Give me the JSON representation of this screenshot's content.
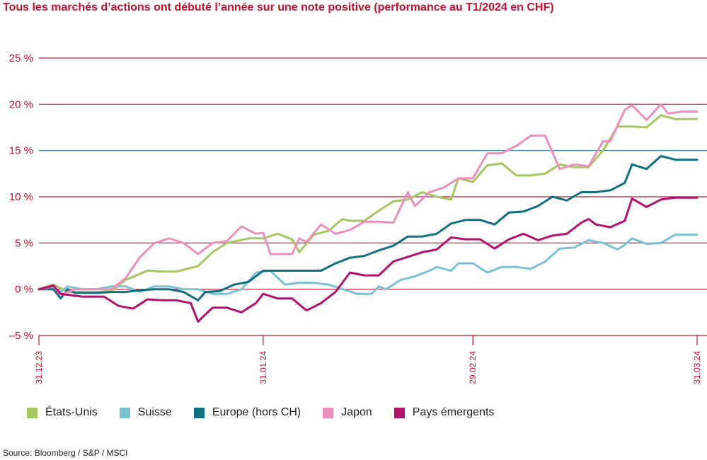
{
  "title": "Tous les marchés d’actions ont débuté l’année sur une note positive (performance au T1/2024 en CHF)",
  "source": "Source: Bloomberg / S&P / MSCI",
  "chart_data": {
    "type": "line",
    "title": "Tous les marchés d’actions ont débuté l’année sur une note positive (performance au T1/2024 en CHF)",
    "ylim": [
      -5,
      25
    ],
    "yticks": [
      -5,
      0,
      5,
      10,
      15,
      20,
      25
    ],
    "ytick_labels": [
      "–5 %",
      "0 %",
      "5 %",
      "10 %",
      "15 %",
      "20 %",
      "25 %"
    ],
    "highlight_gridline": 15,
    "xlim": [
      "2023-12-31",
      "2024-03-31"
    ],
    "xticks": [
      "2023-12-31",
      "2024-01-31",
      "2024-02-29",
      "2024-03-31"
    ],
    "xtick_labels": [
      "31.12.23",
      "31.01.24",
      "29.02.24",
      "31.03.24"
    ],
    "legend_position": "bottom",
    "series": [
      {
        "name": "États-Unis",
        "color": "#a5c761",
        "points": [
          [
            "2023-12-31",
            0
          ],
          [
            "2024-01-02",
            0.5
          ],
          [
            "2024-01-04",
            -0.3
          ],
          [
            "2024-01-08",
            -0.3
          ],
          [
            "2024-01-10",
            -0.2
          ],
          [
            "2024-01-12",
            1
          ],
          [
            "2024-01-15",
            2
          ],
          [
            "2024-01-17",
            1.9
          ],
          [
            "2024-01-19",
            1.9
          ],
          [
            "2024-01-22",
            2.5
          ],
          [
            "2024-01-24",
            4
          ],
          [
            "2024-01-26",
            5
          ],
          [
            "2024-01-29",
            5.5
          ],
          [
            "2024-01-31",
            5.5
          ],
          [
            "2024-02-02",
            6
          ],
          [
            "2024-02-04",
            5.4
          ],
          [
            "2024-02-05",
            4
          ],
          [
            "2024-02-07",
            5.9
          ],
          [
            "2024-02-09",
            6.3
          ],
          [
            "2024-02-11",
            7.6
          ],
          [
            "2024-02-12",
            7.4
          ],
          [
            "2024-02-14",
            7.4
          ],
          [
            "2024-02-16",
            8.5
          ],
          [
            "2024-02-18",
            9.5
          ],
          [
            "2024-02-20",
            9.7
          ],
          [
            "2024-02-22",
            10.5
          ],
          [
            "2024-02-24",
            10
          ],
          [
            "2024-02-26",
            9.7
          ],
          [
            "2024-02-27",
            12
          ],
          [
            "2024-02-29",
            11.6
          ],
          [
            "2024-03-02",
            13.4
          ],
          [
            "2024-03-04",
            13.6
          ],
          [
            "2024-03-06",
            12.3
          ],
          [
            "2024-03-08",
            12.3
          ],
          [
            "2024-03-10",
            12.5
          ],
          [
            "2024-03-12",
            13.5
          ],
          [
            "2024-03-14",
            13.2
          ],
          [
            "2024-03-16",
            13.2
          ],
          [
            "2024-03-18",
            15
          ],
          [
            "2024-03-20",
            17.6
          ],
          [
            "2024-03-22",
            17.6
          ],
          [
            "2024-03-24",
            17.5
          ],
          [
            "2024-03-26",
            18.8
          ],
          [
            "2024-03-28",
            18.4
          ],
          [
            "2024-03-31",
            18.4
          ]
        ]
      },
      {
        "name": "Suisse",
        "color": "#78c2d4",
        "points": [
          [
            "2023-12-31",
            0
          ],
          [
            "2024-01-02",
            0.2
          ],
          [
            "2024-01-03",
            -0.3
          ],
          [
            "2024-01-04",
            0.3
          ],
          [
            "2024-01-06",
            0
          ],
          [
            "2024-01-08",
            0
          ],
          [
            "2024-01-10",
            0.3
          ],
          [
            "2024-01-12",
            0.3
          ],
          [
            "2024-01-14",
            -0.3
          ],
          [
            "2024-01-16",
            0.3
          ],
          [
            "2024-01-18",
            0.3
          ],
          [
            "2024-01-20",
            0
          ],
          [
            "2024-01-22",
            0
          ],
          [
            "2024-01-24",
            -0.5
          ],
          [
            "2024-01-26",
            -0.5
          ],
          [
            "2024-01-28",
            0
          ],
          [
            "2024-01-30",
            1.8
          ],
          [
            "2024-02-01",
            2
          ],
          [
            "2024-02-03",
            0.5
          ],
          [
            "2024-02-05",
            0.7
          ],
          [
            "2024-02-07",
            0.7
          ],
          [
            "2024-02-09",
            0.5
          ],
          [
            "2024-02-11",
            0
          ],
          [
            "2024-02-13",
            -0.5
          ],
          [
            "2024-02-15",
            -0.5
          ],
          [
            "2024-02-16",
            0.3
          ],
          [
            "2024-02-17",
            0
          ],
          [
            "2024-02-19",
            1
          ],
          [
            "2024-02-21",
            1.4
          ],
          [
            "2024-02-23",
            2
          ],
          [
            "2024-02-24",
            2.4
          ],
          [
            "2024-02-26",
            2
          ],
          [
            "2024-02-27",
            2.8
          ],
          [
            "2024-02-29",
            2.8
          ],
          [
            "2024-03-02",
            1.8
          ],
          [
            "2024-03-04",
            2.4
          ],
          [
            "2024-03-06",
            2.4
          ],
          [
            "2024-03-08",
            2.2
          ],
          [
            "2024-03-10",
            3
          ],
          [
            "2024-03-12",
            4.4
          ],
          [
            "2024-03-14",
            4.5
          ],
          [
            "2024-03-16",
            5.3
          ],
          [
            "2024-03-18",
            5
          ],
          [
            "2024-03-20",
            4.3
          ],
          [
            "2024-03-21",
            4.8
          ],
          [
            "2024-03-22",
            5.5
          ],
          [
            "2024-03-24",
            4.9
          ],
          [
            "2024-03-26",
            5
          ],
          [
            "2024-03-28",
            5.9
          ],
          [
            "2024-03-31",
            5.9
          ]
        ]
      },
      {
        "name": "Europe (hors CH)",
        "color": "#10707f",
        "points": [
          [
            "2023-12-31",
            0
          ],
          [
            "2024-01-02",
            0
          ],
          [
            "2024-01-03",
            -1
          ],
          [
            "2024-01-04",
            0
          ],
          [
            "2024-01-05",
            -0.4
          ],
          [
            "2024-01-08",
            -0.4
          ],
          [
            "2024-01-10",
            -0.3
          ],
          [
            "2024-01-12",
            -0.3
          ],
          [
            "2024-01-14",
            -0.1
          ],
          [
            "2024-01-16",
            0
          ],
          [
            "2024-01-18",
            0
          ],
          [
            "2024-01-20",
            -0.3
          ],
          [
            "2024-01-22",
            -1.2
          ],
          [
            "2024-01-23",
            -0.3
          ],
          [
            "2024-01-25",
            -0.2
          ],
          [
            "2024-01-27",
            0.5
          ],
          [
            "2024-01-29",
            0.8
          ],
          [
            "2024-01-31",
            2
          ],
          [
            "2024-02-02",
            2
          ],
          [
            "2024-02-04",
            2
          ],
          [
            "2024-02-06",
            2
          ],
          [
            "2024-02-08",
            2
          ],
          [
            "2024-02-10",
            2.8
          ],
          [
            "2024-02-12",
            3.4
          ],
          [
            "2024-02-14",
            3.6
          ],
          [
            "2024-02-16",
            4.2
          ],
          [
            "2024-02-18",
            4.7
          ],
          [
            "2024-02-20",
            5.7
          ],
          [
            "2024-02-22",
            5.7
          ],
          [
            "2024-02-24",
            6
          ],
          [
            "2024-02-26",
            7.1
          ],
          [
            "2024-02-28",
            7.5
          ],
          [
            "2024-03-01",
            7.5
          ],
          [
            "2024-03-03",
            7
          ],
          [
            "2024-03-05",
            8.3
          ],
          [
            "2024-03-07",
            8.4
          ],
          [
            "2024-03-09",
            9
          ],
          [
            "2024-03-11",
            10
          ],
          [
            "2024-03-13",
            9.6
          ],
          [
            "2024-03-15",
            10.5
          ],
          [
            "2024-03-17",
            10.5
          ],
          [
            "2024-03-19",
            10.7
          ],
          [
            "2024-03-21",
            11.5
          ],
          [
            "2024-03-22",
            13.5
          ],
          [
            "2024-03-24",
            13
          ],
          [
            "2024-03-26",
            14.4
          ],
          [
            "2024-03-28",
            14
          ],
          [
            "2024-03-31",
            14
          ]
        ]
      },
      {
        "name": "Japon",
        "color": "#ec8fbc",
        "points": [
          [
            "2023-12-31",
            0
          ],
          [
            "2024-01-02",
            0.3
          ],
          [
            "2024-01-03",
            -0.6
          ],
          [
            "2024-01-05",
            0
          ],
          [
            "2024-01-08",
            0
          ],
          [
            "2024-01-10",
            0
          ],
          [
            "2024-01-12",
            1.2
          ],
          [
            "2024-01-14",
            3.5
          ],
          [
            "2024-01-16",
            5
          ],
          [
            "2024-01-18",
            5.5
          ],
          [
            "2024-01-20",
            5
          ],
          [
            "2024-01-22",
            3.8
          ],
          [
            "2024-01-24",
            5
          ],
          [
            "2024-01-26",
            5.2
          ],
          [
            "2024-01-28",
            6.8
          ],
          [
            "2024-01-30",
            6
          ],
          [
            "2024-01-31",
            6.1
          ],
          [
            "2024-02-01",
            3.8
          ],
          [
            "2024-02-04",
            3.8
          ],
          [
            "2024-02-05",
            5.5
          ],
          [
            "2024-02-06",
            5.1
          ],
          [
            "2024-02-08",
            7
          ],
          [
            "2024-02-10",
            6
          ],
          [
            "2024-02-12",
            6.4
          ],
          [
            "2024-02-14",
            7.3
          ],
          [
            "2024-02-16",
            7.3
          ],
          [
            "2024-02-18",
            7.2
          ],
          [
            "2024-02-20",
            10.5
          ],
          [
            "2024-02-21",
            9
          ],
          [
            "2024-02-23",
            10.5
          ],
          [
            "2024-02-25",
            11
          ],
          [
            "2024-02-27",
            12
          ],
          [
            "2024-02-29",
            12
          ],
          [
            "2024-03-02",
            14.7
          ],
          [
            "2024-03-04",
            14.7
          ],
          [
            "2024-03-06",
            15.5
          ],
          [
            "2024-03-08",
            16.6
          ],
          [
            "2024-03-10",
            16.6
          ],
          [
            "2024-03-12",
            13
          ],
          [
            "2024-03-14",
            13.5
          ],
          [
            "2024-03-16",
            13.3
          ],
          [
            "2024-03-18",
            16
          ],
          [
            "2024-03-19",
            16
          ],
          [
            "2024-03-21",
            19.4
          ],
          [
            "2024-03-22",
            19.9
          ],
          [
            "2024-03-24",
            18.3
          ],
          [
            "2024-03-26",
            20
          ],
          [
            "2024-03-27",
            19
          ],
          [
            "2024-03-29",
            19.2
          ],
          [
            "2024-03-31",
            19.2
          ]
        ]
      },
      {
        "name": "Pays émergents",
        "color": "#b5106f",
        "points": [
          [
            "2023-12-31",
            0
          ],
          [
            "2024-01-02",
            0.4
          ],
          [
            "2024-01-03",
            -0.5
          ],
          [
            "2024-01-06",
            -0.8
          ],
          [
            "2024-01-09",
            -0.8
          ],
          [
            "2024-01-11",
            -1.8
          ],
          [
            "2024-01-13",
            -2.1
          ],
          [
            "2024-01-15",
            -1.1
          ],
          [
            "2024-01-17",
            -1.2
          ],
          [
            "2024-01-19",
            -1.2
          ],
          [
            "2024-01-21",
            -1.5
          ],
          [
            "2024-01-22",
            -3.5
          ],
          [
            "2024-01-24",
            -2
          ],
          [
            "2024-01-26",
            -2
          ],
          [
            "2024-01-28",
            -2.5
          ],
          [
            "2024-01-30",
            -1.5
          ],
          [
            "2024-01-31",
            -0.5
          ],
          [
            "2024-02-02",
            -1
          ],
          [
            "2024-02-04",
            -1
          ],
          [
            "2024-02-06",
            -2.3
          ],
          [
            "2024-02-08",
            -1.5
          ],
          [
            "2024-02-10",
            -0.3
          ],
          [
            "2024-02-12",
            1.8
          ],
          [
            "2024-02-14",
            1.5
          ],
          [
            "2024-02-16",
            1.5
          ],
          [
            "2024-02-18",
            3
          ],
          [
            "2024-02-20",
            3.5
          ],
          [
            "2024-02-22",
            4
          ],
          [
            "2024-02-24",
            4.3
          ],
          [
            "2024-02-26",
            5.6
          ],
          [
            "2024-02-28",
            5.4
          ],
          [
            "2024-03-01",
            5.4
          ],
          [
            "2024-03-03",
            4.4
          ],
          [
            "2024-03-05",
            5.4
          ],
          [
            "2024-03-07",
            6
          ],
          [
            "2024-03-09",
            5.3
          ],
          [
            "2024-03-11",
            5.8
          ],
          [
            "2024-03-13",
            6
          ],
          [
            "2024-03-15",
            7.2
          ],
          [
            "2024-03-16",
            7.6
          ],
          [
            "2024-03-17",
            7
          ],
          [
            "2024-03-19",
            6.7
          ],
          [
            "2024-03-21",
            7.4
          ],
          [
            "2024-03-22",
            9.8
          ],
          [
            "2024-03-24",
            8.9
          ],
          [
            "2024-03-26",
            9.7
          ],
          [
            "2024-03-28",
            9.9
          ],
          [
            "2024-03-31",
            9.9
          ]
        ]
      }
    ]
  }
}
